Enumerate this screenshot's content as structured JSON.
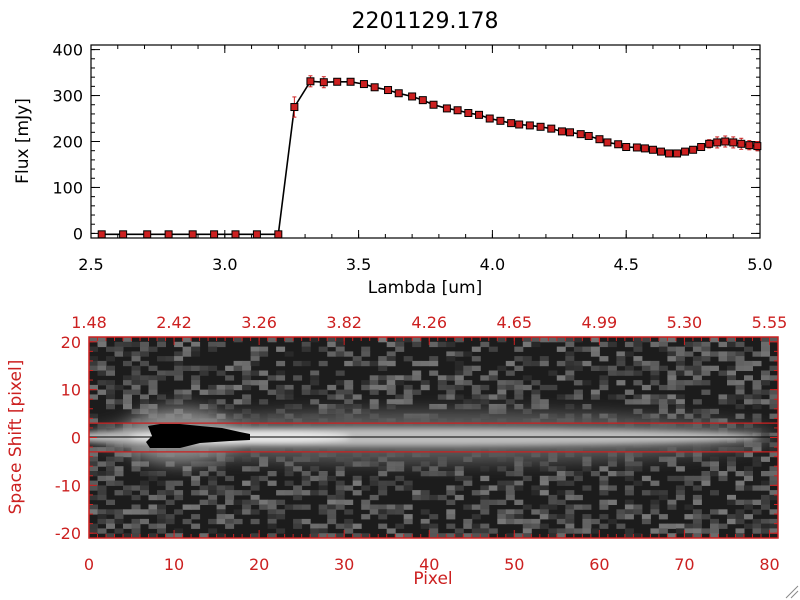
{
  "colors": {
    "axis_black": "#000000",
    "axis_red": "#cc2020",
    "marker_red": "#cc2020",
    "background": "#ffffff"
  },
  "chart_data": [
    {
      "type": "line",
      "title": "2201129.178",
      "xlabel": "Lambda [um]",
      "ylabel": "Flux [mJy]",
      "xlim": [
        2.5,
        5.0
      ],
      "ylim": [
        -10,
        410
      ],
      "xticks": [
        "2.5",
        "3.0",
        "3.5",
        "4.0",
        "4.5",
        "5.0"
      ],
      "yticks": [
        "0",
        "100",
        "200",
        "300",
        "400"
      ],
      "grid": false,
      "series": [
        {
          "x": [
            2.54,
            2.62,
            2.71,
            2.79,
            2.88,
            2.96,
            3.04,
            3.12,
            3.2,
            3.26,
            3.32,
            3.37,
            3.42,
            3.47,
            3.52,
            3.56,
            3.61,
            3.65,
            3.7,
            3.74,
            3.78,
            3.83,
            3.87,
            3.91,
            3.95,
            3.99,
            4.03,
            4.07,
            4.1,
            4.14,
            4.18,
            4.22,
            4.26,
            4.29,
            4.33,
            4.36,
            4.4,
            4.43,
            4.47,
            4.5,
            4.54,
            4.57,
            4.6,
            4.63,
            4.66,
            4.69,
            4.72,
            4.75,
            4.78,
            4.81,
            4.84,
            4.87,
            4.9,
            4.93,
            4.96,
            4.99
          ],
          "y": [
            -2,
            -2,
            -2,
            -2,
            -2,
            -2,
            -2,
            -2,
            -2,
            275,
            331,
            329,
            330,
            330,
            325,
            318,
            312,
            305,
            298,
            290,
            280,
            272,
            268,
            262,
            258,
            250,
            245,
            240,
            237,
            235,
            232,
            228,
            222,
            220,
            216,
            212,
            205,
            198,
            194,
            188,
            187,
            185,
            182,
            178,
            174,
            174,
            178,
            182,
            188,
            195,
            198,
            200,
            198,
            195,
            192,
            190
          ],
          "err": [
            4,
            4,
            4,
            4,
            4,
            4,
            4,
            4,
            4,
            22,
            12,
            12,
            6,
            5,
            5,
            5,
            5,
            5,
            5,
            5,
            5,
            5,
            5,
            5,
            5,
            5,
            5,
            5,
            5,
            5,
            5,
            5,
            5,
            5,
            5,
            5,
            5,
            5,
            5,
            5,
            5,
            5,
            5,
            5,
            5,
            5,
            6,
            6,
            7,
            9,
            12,
            12,
            12,
            12,
            10,
            10
          ]
        }
      ]
    },
    {
      "type": "heatmap",
      "xlabel": "Pixel",
      "ylabel": "Space Shift [pixel]",
      "xlim": [
        0,
        81
      ],
      "ylim": [
        -21,
        21
      ],
      "xticks": [
        "0",
        "10",
        "20",
        "30",
        "40",
        "50",
        "60",
        "70",
        "80"
      ],
      "yticks": [
        "-20",
        "-10",
        "0",
        "10",
        "20"
      ],
      "top_axis_ticks": [
        "1.48",
        "2.42",
        "3.26",
        "3.82",
        "4.26",
        "4.65",
        "4.99",
        "5.30",
        "5.55"
      ],
      "aperture_lines": [
        3,
        -3
      ],
      "center_line": 0
    }
  ]
}
